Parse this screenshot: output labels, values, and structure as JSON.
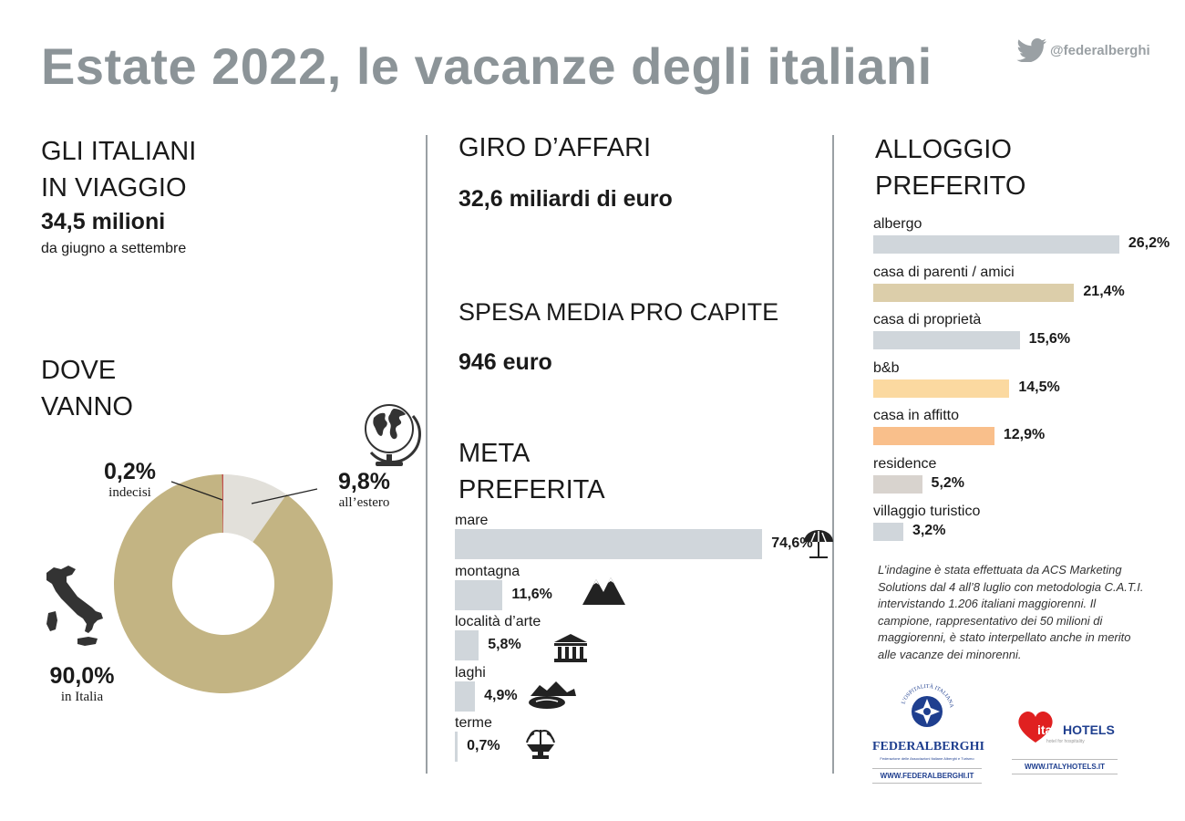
{
  "title": "Estate 2022, le vacanze degli italiani",
  "twitter_handle": "@federalberghi",
  "colors": {
    "title": "#8c9498",
    "bar_grey": "#d0d6db",
    "bar_tan": "#dcceaa",
    "bar_peach": "#fbd9a0",
    "bar_orange": "#f9bf8b",
    "bar_taupe": "#d8d3ce",
    "donut_italy": "#c3b483",
    "donut_abroad": "#e2e0da",
    "donut_undecided": "#c0504d"
  },
  "travelers": {
    "heading_line1": "GLI ITALIANI",
    "heading_line2": "IN VIAGGIO",
    "value": "34,5 milioni",
    "period": "da giugno a settembre"
  },
  "business": {
    "heading": "GIRO D’AFFARI",
    "value": "32,6 miliardi di euro"
  },
  "spending": {
    "heading": "SPESA MEDIA PRO CAPITE",
    "value": "946 euro"
  },
  "destination_heading": {
    "line1": "DOVE",
    "line2": "VANNO"
  },
  "meta_heading": {
    "line1": "META",
    "line2": "PREFERITA"
  },
  "alloggio_heading": {
    "line1": "ALLOGGIO",
    "line2": "PREFERITO"
  },
  "note": "L’indagine è stata effettuata da ACS Marketing Solutions dal 4 all’8 luglio con metodologia C.A.T.I. intervistando 1.206 italiani maggiorenni. Il campione, rappresentativo dei 50 milioni di maggiorenni, è stato interpellato anche in merito alle vacanze dei minorenni.",
  "logos": {
    "federalberghi": {
      "name": "FEDERALBERGHI",
      "arc_text": "L’OSPITALITÀ ITALIANA",
      "tagline": "Federazione delle Associazioni Italiane Alberghi e Turismo",
      "url": "WWW.FEDERALBERGHI.IT"
    },
    "italyhotels": {
      "name_part1": "italy",
      "name_part2": "HOTELS",
      "tagline": "hotel for hospitality",
      "url": "WWW.ITALYHOTELS.IT"
    }
  },
  "chart_data": [
    {
      "type": "pie",
      "donut": true,
      "slices": [
        {
          "label": "in Italia",
          "value": 90.0,
          "display": "90,0%",
          "color": "#c3b483"
        },
        {
          "label": "all’estero",
          "value": 9.8,
          "display": "9,8%",
          "color": "#e2e0da"
        },
        {
          "label": "indecisi",
          "value": 0.2,
          "display": "0,2%",
          "color": "#c0504d"
        }
      ]
    },
    {
      "type": "bar",
      "orientation": "horizontal",
      "categories": [
        "mare",
        "montagna",
        "località d’arte",
        "laghi",
        "terme"
      ],
      "values": [
        74.6,
        11.6,
        5.8,
        4.9,
        0.7
      ],
      "labels": [
        "74,6%",
        "11,6%",
        "5,8%",
        "4,9%",
        "0,7%"
      ],
      "icons": [
        "umbrella-icon",
        "mountains-icon",
        "temple-icon",
        "lake-icon",
        "fountain-icon"
      ]
    },
    {
      "type": "bar",
      "orientation": "horizontal",
      "categories": [
        "albergo",
        "casa di parenti / amici",
        "casa di proprietà",
        "b&b",
        "casa in affitto",
        "residence",
        "villaggio turistico"
      ],
      "values": [
        26.2,
        21.4,
        15.6,
        14.5,
        12.9,
        5.2,
        3.2
      ],
      "labels": [
        "26,2%",
        "21,4%",
        "15,6%",
        "14,5%",
        "12,9%",
        "5,2%",
        "3,2%"
      ],
      "colors": [
        "#d0d6db",
        "#dcceaa",
        "#d0d6db",
        "#fbd9a0",
        "#f9bf8b",
        "#d8d3ce",
        "#d0d6db"
      ]
    }
  ]
}
